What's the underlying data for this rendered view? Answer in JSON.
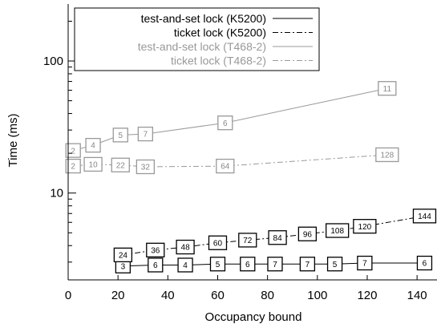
{
  "chart_data": {
    "type": "line",
    "title": "",
    "xlabel": "Occupancy bound",
    "ylabel": "Time (ms)",
    "xlim": [
      0,
      148
    ],
    "ylim": [
      2.2,
      270
    ],
    "yscale": "log",
    "x_ticks": [
      0,
      20,
      40,
      60,
      80,
      100,
      120,
      140
    ],
    "y_ticks": [
      10,
      100
    ],
    "grid": false,
    "legend": {
      "position": "top-left"
    },
    "series": [
      {
        "name": "test-and-set lock (K5200)",
        "color": "#000000",
        "dash": "solid",
        "points": [
          {
            "x": 22,
            "y": 2.8,
            "label": "3"
          },
          {
            "x": 35,
            "y": 2.85,
            "label": "6"
          },
          {
            "x": 47,
            "y": 2.85,
            "label": "4"
          },
          {
            "x": 60,
            "y": 2.9,
            "label": "5"
          },
          {
            "x": 72,
            "y": 2.9,
            "label": "6"
          },
          {
            "x": 83,
            "y": 2.9,
            "label": "7"
          },
          {
            "x": 96,
            "y": 2.9,
            "label": "7"
          },
          {
            "x": 107,
            "y": 2.9,
            "label": "5"
          },
          {
            "x": 119,
            "y": 2.95,
            "label": "7"
          },
          {
            "x": 143,
            "y": 2.95,
            "label": "6"
          }
        ]
      },
      {
        "name": "ticket lock (K5200)",
        "color": "#000000",
        "dash": "dashdot",
        "points": [
          {
            "x": 22,
            "y": 3.4,
            "label": "24"
          },
          {
            "x": 35,
            "y": 3.7,
            "label": "36"
          },
          {
            "x": 47,
            "y": 3.9,
            "label": "48"
          },
          {
            "x": 60,
            "y": 4.2,
            "label": "60"
          },
          {
            "x": 72,
            "y": 4.4,
            "label": "72"
          },
          {
            "x": 84,
            "y": 4.6,
            "label": "84"
          },
          {
            "x": 96,
            "y": 4.9,
            "label": "96"
          },
          {
            "x": 108,
            "y": 5.2,
            "label": "108"
          },
          {
            "x": 119,
            "y": 5.6,
            "label": "120"
          },
          {
            "x": 143,
            "y": 6.7,
            "label": "144"
          }
        ]
      },
      {
        "name": "test-and-set lock (T468-2)",
        "color": "#999999",
        "dash": "solid",
        "points": [
          {
            "x": 2,
            "y": 21,
            "label": "2"
          },
          {
            "x": 10,
            "y": 23,
            "label": "4"
          },
          {
            "x": 21,
            "y": 27.5,
            "label": "5"
          },
          {
            "x": 31,
            "y": 28,
            "label": "7"
          },
          {
            "x": 63,
            "y": 34,
            "label": "6"
          },
          {
            "x": 128,
            "y": 62,
            "label": "11"
          }
        ]
      },
      {
        "name": "ticket lock (T468-2)",
        "color": "#999999",
        "dash": "dashdot",
        "points": [
          {
            "x": 2,
            "y": 16,
            "label": "2"
          },
          {
            "x": 10,
            "y": 16.5,
            "label": "10"
          },
          {
            "x": 21,
            "y": 16.3,
            "label": "22"
          },
          {
            "x": 31,
            "y": 15.8,
            "label": "32"
          },
          {
            "x": 63,
            "y": 16,
            "label": "64"
          },
          {
            "x": 128,
            "y": 19.5,
            "label": "128"
          }
        ]
      }
    ]
  }
}
